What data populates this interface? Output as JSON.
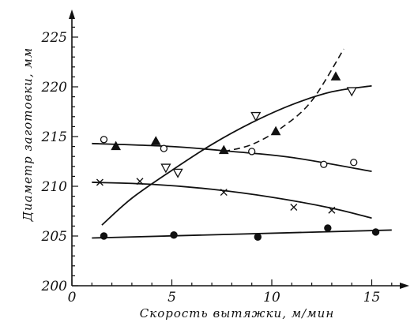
{
  "chart_data": {
    "type": "scatter",
    "title": "",
    "xlabel": "Скорость вытяжки, м/мин",
    "ylabel": "Диаметр заготовки, мм",
    "xlim": [
      0,
      17
    ],
    "ylim": [
      200,
      227
    ],
    "x_ticks": [
      0,
      5,
      10,
      15
    ],
    "x_tick_labels": [
      "0",
      "5",
      "10",
      "15"
    ],
    "x_minor_ticks": [
      1,
      2,
      3,
      4,
      6,
      7,
      8,
      9,
      11,
      12,
      13,
      14,
      16
    ],
    "y_ticks": [
      200,
      205,
      210,
      215,
      220,
      225
    ],
    "y_tick_labels": [
      "200",
      "205",
      "210",
      "215",
      "220",
      "225"
    ],
    "y_minor_ticks": [
      201,
      202,
      203,
      204,
      206,
      207,
      208,
      209,
      211,
      212,
      213,
      214,
      216,
      217,
      218,
      219,
      221,
      222,
      223,
      224,
      226
    ],
    "grid": false,
    "series": [
      {
        "marker": "open-circle",
        "points": [
          [
            1.6,
            214.7
          ],
          [
            4.6,
            213.8
          ],
          [
            9.0,
            213.5
          ],
          [
            12.6,
            212.2
          ],
          [
            14.1,
            212.4
          ]
        ],
        "fit": {
          "style": "solid",
          "points": [
            [
              1.0,
              214.3
            ],
            [
              5.0,
              214.0
            ],
            [
              8.0,
              213.5
            ],
            [
              11.0,
              212.9
            ],
            [
              15.0,
              211.5
            ]
          ]
        }
      },
      {
        "marker": "filled-triangle",
        "points": [
          [
            2.2,
            214.0
          ],
          [
            4.2,
            214.5
          ],
          [
            7.6,
            213.6
          ],
          [
            10.2,
            215.5
          ],
          [
            13.2,
            221.0
          ]
        ],
        "fit": {
          "style": "dashed",
          "points": [
            [
              7.6,
              213.5
            ],
            [
              9.0,
              214.2
            ],
            [
              10.5,
              215.9
            ],
            [
              12.0,
              218.6
            ],
            [
              13.6,
              223.8
            ]
          ]
        }
      },
      {
        "marker": "open-triangle-down",
        "points": [
          [
            4.7,
            211.9
          ],
          [
            5.3,
            211.4
          ],
          [
            9.2,
            217.1
          ],
          [
            14.0,
            219.6
          ]
        ],
        "fit": {
          "style": "solid",
          "points": [
            [
              1.5,
              206.1
            ],
            [
              3.0,
              208.8
            ],
            [
              5.0,
              211.6
            ],
            [
              7.0,
              214.2
            ],
            [
              9.0,
              216.4
            ],
            [
              11.0,
              218.2
            ],
            [
              13.0,
              219.5
            ],
            [
              15.0,
              220.1
            ]
          ]
        }
      },
      {
        "marker": "cross",
        "points": [
          [
            1.4,
            210.4
          ],
          [
            3.4,
            210.5
          ],
          [
            7.6,
            209.4
          ],
          [
            11.1,
            207.9
          ],
          [
            13.0,
            207.6
          ]
        ],
        "fit": {
          "style": "solid",
          "points": [
            [
              1.0,
              210.4
            ],
            [
              4.0,
              210.2
            ],
            [
              7.0,
              209.7
            ],
            [
              10.0,
              208.9
            ],
            [
              13.0,
              207.8
            ],
            [
              15.0,
              206.8
            ]
          ]
        }
      },
      {
        "marker": "filled-circle",
        "points": [
          [
            1.6,
            205.0
          ],
          [
            5.1,
            205.1
          ],
          [
            9.3,
            204.9
          ],
          [
            12.8,
            205.8
          ],
          [
            15.2,
            205.4
          ]
        ],
        "fit": {
          "style": "solid",
          "points": [
            [
              1.0,
              204.8
            ],
            [
              16.0,
              205.6
            ]
          ]
        }
      }
    ]
  }
}
